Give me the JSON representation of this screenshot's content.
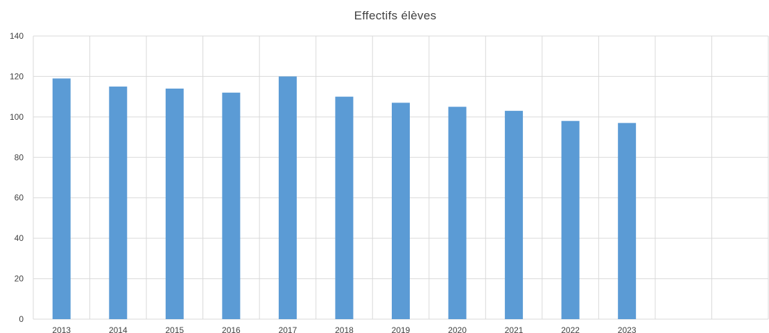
{
  "chart_data": {
    "type": "bar",
    "title": "Effectifs élèves",
    "categories": [
      "2013",
      "2014",
      "2015",
      "2016",
      "2017",
      "2018",
      "2019",
      "2020",
      "2021",
      "2022",
      "2023",
      "",
      ""
    ],
    "series": [
      {
        "values": [
          119,
          115,
          114,
          112,
          120,
          110,
          107,
          105,
          103,
          98,
          97,
          null,
          null
        ]
      }
    ],
    "ylim": [
      0,
      140
    ],
    "yticks": [
      0,
      20,
      40,
      60,
      80,
      100,
      120,
      140
    ],
    "xlabel": "",
    "ylabel": "",
    "grid": true,
    "bar_color": "#5b9bd5",
    "legend": "none"
  }
}
